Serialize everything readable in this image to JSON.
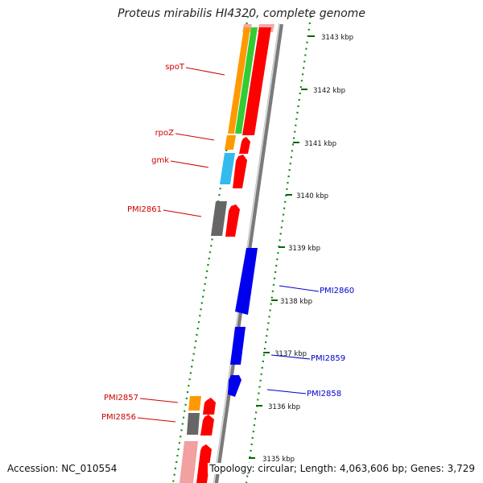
{
  "title": "Proteus mirabilis HI4320, complete genome",
  "accession": "Accession: NC_010554",
  "topology": "Topology: circular; Length: 4,063,606 bp; Genes: 3,729",
  "colors": {
    "background": "#ffffff",
    "gene_red": "#ff0000",
    "gene_orange": "#ff9900",
    "gene_green": "#33cc33",
    "gene_cyan": "#33bbee",
    "gene_gray": "#666666",
    "gene_blue": "#0000ee",
    "gene_pink": "#f2a0a0",
    "label_red": "#cc0000",
    "label_blue": "#0000cc",
    "tick_green": "#006600",
    "backbone": "#888888"
  },
  "ticks": [
    "3143 kbp",
    "3142 kbp",
    "3141 kbp",
    "3140 kbp",
    "3139 kbp",
    "3138 kbp",
    "3137 kbp",
    "3136 kbp",
    "3135 kbp"
  ],
  "gene_labels_left": [
    "spoT",
    "rpoZ",
    "gmk",
    "PMI2861",
    "PMI2857",
    "PMI2856"
  ],
  "gene_labels_right": [
    "PMI2860",
    "PMI2859",
    "PMI2858"
  ]
}
